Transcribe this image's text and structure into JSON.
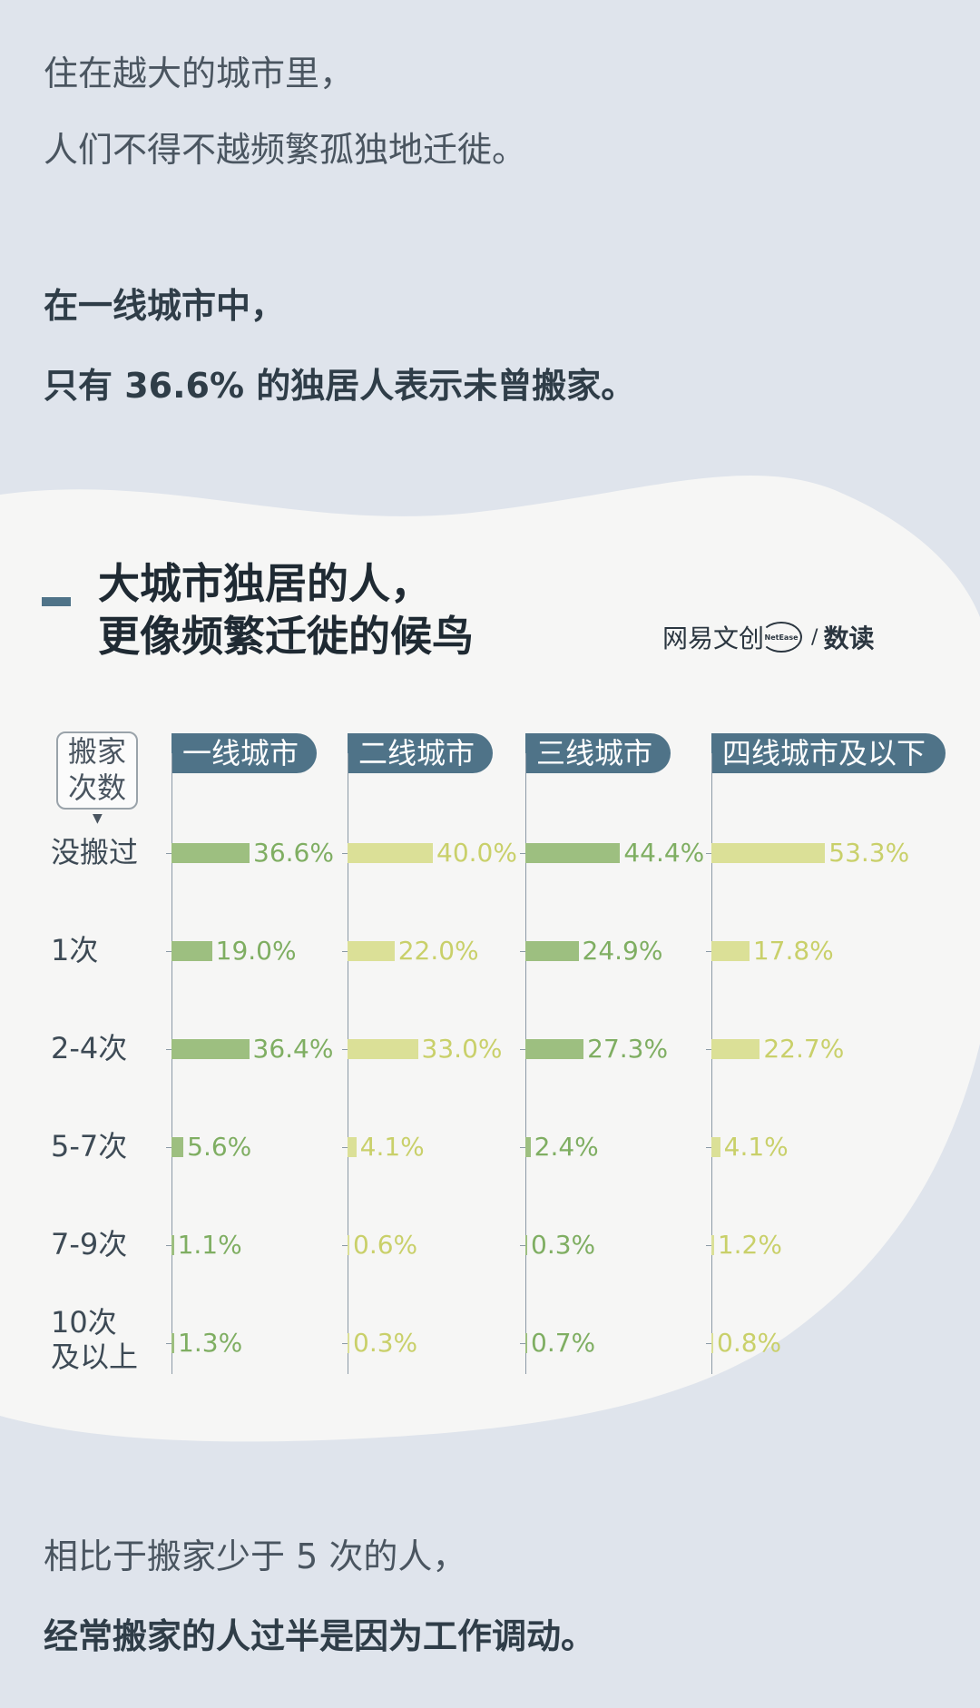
{
  "intro": {
    "line1": "住在越大的城市里，",
    "line2": "人们不得不越频繁孤独地迁徙。",
    "line3": "在一线城市中，",
    "line4": "只有 36.6% 的独居人表示未曾搬家。"
  },
  "chart_title": {
    "line1": "大城市独居的人，",
    "line2": "更像频繁迁徙的候鸟"
  },
  "logo": {
    "main": "网易文创",
    "ring": "NetEase",
    "slash": "/",
    "sub": "数读"
  },
  "axis_badge": {
    "line1": "搬家",
    "line2": "次数",
    "arrow": "▼"
  },
  "colors": {
    "dark_green": "#9dbf80",
    "light_green": "#dbe097",
    "dark_text": "#7fae62",
    "light_text": "#c9d06a",
    "header_bg": "#4f7388"
  },
  "chart_data": {
    "type": "bar",
    "categories": [
      "没搬过",
      "1次",
      "2-4次",
      "5-7次",
      "7-9次",
      "10次\n及以上"
    ],
    "series": [
      {
        "name": "一线城市",
        "values": [
          36.6,
          19.0,
          36.4,
          5.6,
          1.1,
          1.3
        ],
        "labels": [
          "36.6%",
          "19.0%",
          "36.4%",
          "5.6%",
          "1.1%",
          "1.3%"
        ]
      },
      {
        "name": "二线城市",
        "values": [
          40.0,
          22.0,
          33.0,
          4.1,
          0.6,
          0.3
        ],
        "labels": [
          "40.0%",
          "22.0%",
          "33.0%",
          "4.1%",
          "0.6%",
          "0.3%"
        ]
      },
      {
        "name": "三线城市",
        "values": [
          44.4,
          24.9,
          27.3,
          2.4,
          0.3,
          0.7
        ],
        "labels": [
          "44.4%",
          "24.9%",
          "27.3%",
          "2.4%",
          "0.3%",
          "0.7%"
        ]
      },
      {
        "name": "四线城市及以下",
        "values": [
          53.3,
          17.8,
          22.7,
          4.1,
          1.2,
          0.8
        ],
        "labels": [
          "53.3%",
          "17.8%",
          "22.7%",
          "4.1%",
          "1.2%",
          "0.8%"
        ]
      }
    ],
    "orientation": "horizontal",
    "grid": false
  },
  "outro": {
    "line1": "相比于搬家少于 5 次的人，",
    "line2": "经常搬家的人过半是因为工作调动。"
  }
}
